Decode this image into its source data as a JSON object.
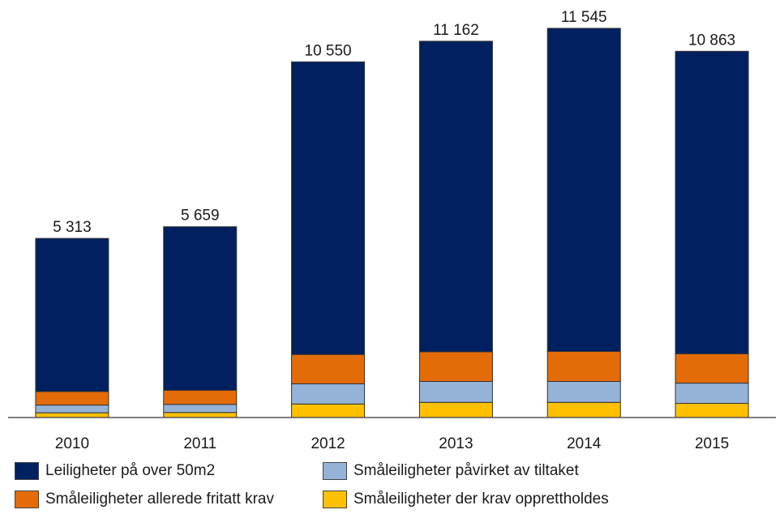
{
  "chart_data": {
    "type": "bar",
    "stacked": true,
    "categories": [
      "2010",
      "2011",
      "2012",
      "2013",
      "2014",
      "2015"
    ],
    "totals": [
      5313,
      5659,
      10550,
      11162,
      11545,
      10863
    ],
    "total_labels": [
      "5 313",
      "5 659",
      "10 550",
      "11 162",
      "11 545",
      "10 863"
    ],
    "series": [
      {
        "name": "Småleiligheter der krav opprettholdes",
        "color": "#ffc000",
        "values": [
          140,
          150,
          400,
          450,
          450,
          420
        ]
      },
      {
        "name": "Småleiligheter påvirket av tiltaket",
        "color": "#95b3d7",
        "values": [
          230,
          240,
          600,
          620,
          620,
          600
        ]
      },
      {
        "name": "Småleiligheter allerede fritatt krav",
        "color": "#e36c09",
        "values": [
          400,
          420,
          870,
          880,
          890,
          870
        ]
      },
      {
        "name": "Leiligheter på over 50m2",
        "color": "#002060",
        "values": [
          4543,
          4849,
          8680,
          9212,
          9585,
          8973
        ]
      }
    ],
    "legend": [
      {
        "label": "Leiligheter på over 50m2",
        "color": "#002060"
      },
      {
        "label": "Småleiligheter påvirket av tiltaket",
        "color": "#95b3d7"
      },
      {
        "label": "Småleiligheter allerede fritatt krav",
        "color": "#e36c09"
      },
      {
        "label": "Småleiligheter der krav opprettholdes",
        "color": "#ffc000"
      }
    ],
    "title": "",
    "xlabel": "",
    "ylabel": "",
    "ylim": [
      0,
      12000
    ],
    "grid": false,
    "legend_position": "bottom"
  }
}
